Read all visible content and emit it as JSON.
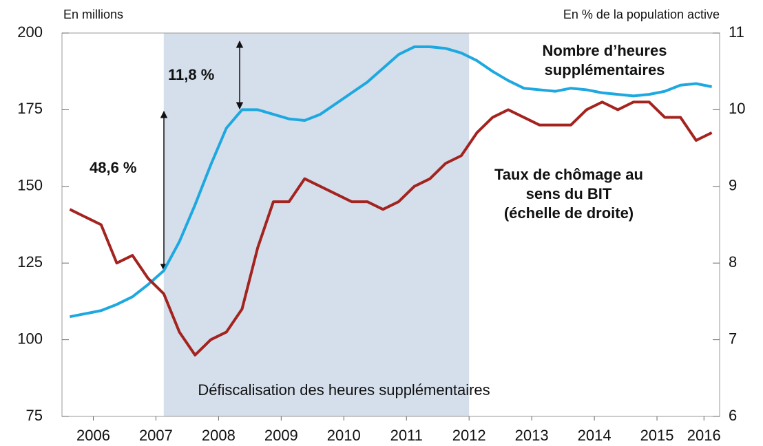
{
  "chart_data": {
    "type": "line",
    "y_label": "En millions",
    "y2_label": "En % de la population active",
    "shade": {
      "x": [
        2007.625,
        2012.5
      ],
      "label": "Défiscalisation des heures supplémentaires"
    },
    "annotations": [
      "48,6 %",
      "11,8 %"
    ],
    "x": [
      2006.125,
      2006.375,
      2006.625,
      2006.875,
      2007.125,
      2007.375,
      2007.625,
      2007.875,
      2008.125,
      2008.375,
      2008.625,
      2008.875,
      2009.125,
      2009.375,
      2009.625,
      2009.875,
      2010.125,
      2010.375,
      2010.625,
      2010.875,
      2011.125,
      2011.375,
      2011.625,
      2011.875,
      2012.125,
      2012.375,
      2012.625,
      2012.875,
      2013.125,
      2013.375,
      2013.625,
      2013.875,
      2014.125,
      2014.375,
      2014.625,
      2014.875,
      2015.125,
      2015.375,
      2015.625,
      2015.875,
      2016.125,
      2016.375
    ],
    "xlim": [
      2006,
      2016.5
    ],
    "xticks": [
      {
        "value": 2006.5,
        "label": "2006"
      },
      {
        "value": 2007.5,
        "label": "2007"
      },
      {
        "value": 2008.5,
        "label": "2008"
      },
      {
        "value": 2009.5,
        "label": "2009"
      },
      {
        "value": 2010.5,
        "label": "2010"
      },
      {
        "value": 2011.5,
        "label": "2011"
      },
      {
        "value": 2012.5,
        "label": "2012"
      },
      {
        "value": 2013.5,
        "label": "2013"
      },
      {
        "value": 2014.5,
        "label": "2014"
      },
      {
        "value": 2015.5,
        "label": "2015"
      },
      {
        "value": 2016.25,
        "label": "2016"
      }
    ],
    "ylim": [
      75,
      200
    ],
    "yticks": [
      75,
      100,
      125,
      150,
      175,
      200
    ],
    "y2lim": [
      6,
      11
    ],
    "y2ticks": [
      6,
      7,
      8,
      9,
      10,
      11
    ],
    "series": [
      {
        "name": [
          "Nombre d’heures",
          "supplémentaires"
        ],
        "color": "#1ea8e0",
        "values": [
          107.5,
          108.5,
          109.5,
          111.5,
          114,
          118,
          122.5,
          132,
          144,
          157,
          169,
          175,
          175,
          173.5,
          172,
          171.5,
          173.5,
          177,
          180.5,
          184,
          188.5,
          193,
          195.5,
          195.5,
          195,
          193.5,
          191,
          187.5,
          184.5,
          182,
          181.5,
          181,
          182,
          181.5,
          180.5,
          180,
          179.5,
          180,
          181,
          183,
          183.5,
          182.5
        ]
      },
      {
        "name": [
          "Taux de chômage au",
          "sens du BIT",
          "(échelle de droite)"
        ],
        "color": "#a3231f",
        "axis": "y2",
        "values": [
          8.7,
          8.6,
          8.5,
          8.0,
          8.1,
          7.8,
          7.6,
          7.1,
          6.8,
          7.0,
          7.1,
          7.4,
          8.2,
          8.8,
          8.8,
          9.1,
          9.0,
          8.9,
          8.8,
          8.8,
          8.7,
          8.8,
          9.0,
          9.1,
          9.3,
          9.4,
          9.7,
          9.9,
          10.0,
          9.9,
          9.8,
          9.8,
          9.8,
          10.0,
          10.1,
          10.0,
          10.1,
          10.1,
          9.9,
          9.9,
          9.6,
          9.7
        ]
      }
    ]
  }
}
